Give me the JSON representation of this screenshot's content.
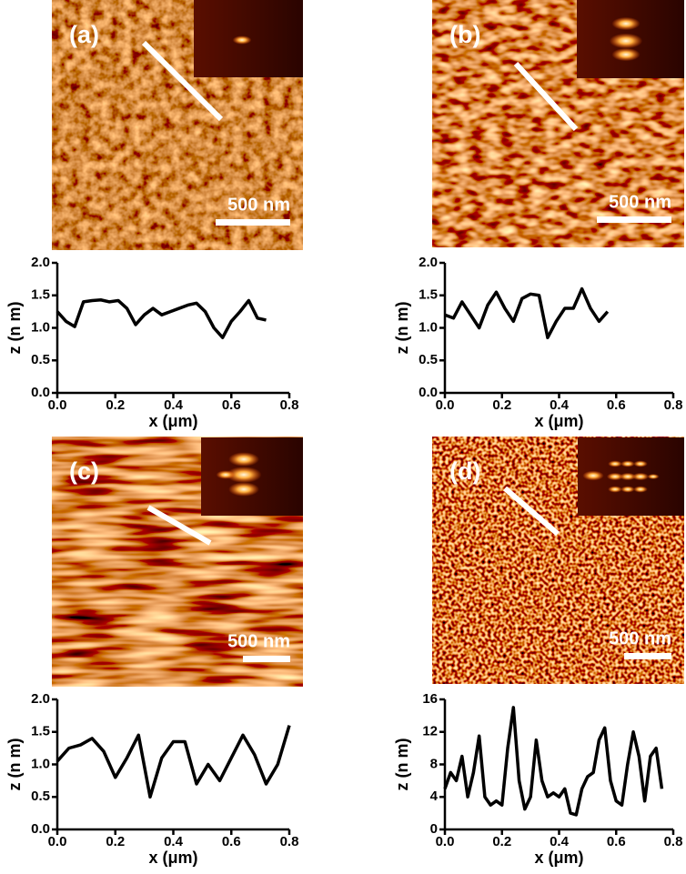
{
  "images": [
    {
      "label": "(a)",
      "scale_bar": "500 nm"
    },
    {
      "label": "(b)",
      "scale_bar": "500 nm"
    },
    {
      "label": "(c)",
      "scale_bar": "500 nm"
    },
    {
      "label": "(d)",
      "scale_bar": "500 nm"
    }
  ],
  "chart_data": [
    {
      "type": "line",
      "xlabel": "x (μm)",
      "ylabel": "z (n m)",
      "x": [
        0,
        0.03,
        0.06,
        0.09,
        0.12,
        0.15,
        0.18,
        0.21,
        0.24,
        0.27,
        0.3,
        0.33,
        0.36,
        0.39,
        0.42,
        0.45,
        0.48,
        0.51,
        0.54,
        0.57,
        0.6,
        0.63,
        0.66,
        0.69,
        0.72
      ],
      "series": [
        {
          "color": "#000000",
          "values": [
            1.25,
            1.1,
            1.02,
            1.4,
            1.42,
            1.43,
            1.4,
            1.42,
            1.3,
            1.05,
            1.2,
            1.3,
            1.2,
            1.25,
            1.3,
            1.35,
            1.38,
            1.25,
            1.0,
            0.85,
            1.1,
            1.25,
            1.42,
            1.15,
            1.12
          ]
        }
      ],
      "xlim": [
        0,
        0.8
      ],
      "xticks": [
        {
          "value": 0,
          "label": "0.0"
        },
        {
          "value": 0.2,
          "label": "0.2"
        },
        {
          "value": 0.4,
          "label": "0.4"
        },
        {
          "value": 0.6,
          "label": "0.6"
        },
        {
          "value": 0.8,
          "label": "0.8"
        }
      ],
      "ylim": [
        0,
        2
      ],
      "yticks": [
        {
          "value": 0,
          "label": "0.0"
        },
        {
          "value": 0.5,
          "label": "0.5"
        },
        {
          "value": 1,
          "label": "1.0"
        },
        {
          "value": 1.5,
          "label": "1.5"
        },
        {
          "value": 2,
          "label": "2.0"
        }
      ]
    },
    {
      "type": "line",
      "xlabel": "x (μm)",
      "ylabel": "z (n m)",
      "x": [
        0,
        0.03,
        0.06,
        0.09,
        0.12,
        0.15,
        0.18,
        0.21,
        0.24,
        0.27,
        0.3,
        0.33,
        0.36,
        0.39,
        0.42,
        0.45,
        0.48,
        0.51,
        0.54,
        0.57
      ],
      "series": [
        {
          "color": "#000000",
          "values": [
            1.2,
            1.15,
            1.4,
            1.2,
            1.0,
            1.35,
            1.55,
            1.3,
            1.1,
            1.45,
            1.52,
            1.5,
            0.85,
            1.1,
            1.3,
            1.3,
            1.6,
            1.3,
            1.1,
            1.25
          ]
        }
      ],
      "xlim": [
        0,
        0.8
      ],
      "xticks": [
        {
          "value": 0,
          "label": "0.0"
        },
        {
          "value": 0.2,
          "label": "0.2"
        },
        {
          "value": 0.4,
          "label": "0.4"
        },
        {
          "value": 0.6,
          "label": "0.6"
        },
        {
          "value": 0.8,
          "label": "0.8"
        }
      ],
      "ylim": [
        0,
        2
      ],
      "yticks": [
        {
          "value": 0,
          "label": "0.0"
        },
        {
          "value": 0.5,
          "label": "0.5"
        },
        {
          "value": 1,
          "label": "1.0"
        },
        {
          "value": 1.5,
          "label": "1.5"
        },
        {
          "value": 2,
          "label": "2.0"
        }
      ]
    },
    {
      "type": "line",
      "xlabel": "x (μm)",
      "ylabel": "z (n m)",
      "x": [
        0,
        0.04,
        0.08,
        0.12,
        0.16,
        0.2,
        0.24,
        0.28,
        0.32,
        0.36,
        0.4,
        0.44,
        0.48,
        0.52,
        0.56,
        0.6,
        0.64,
        0.68,
        0.72,
        0.76,
        0.8
      ],
      "series": [
        {
          "color": "#000000",
          "values": [
            1.05,
            1.25,
            1.3,
            1.4,
            1.2,
            0.8,
            1.1,
            1.45,
            0.5,
            1.1,
            1.35,
            1.35,
            0.7,
            1.0,
            0.75,
            1.1,
            1.45,
            1.15,
            0.7,
            1.0,
            1.6
          ]
        }
      ],
      "xlim": [
        0,
        0.8
      ],
      "xticks": [
        {
          "value": 0,
          "label": "0.0"
        },
        {
          "value": 0.2,
          "label": "0.2"
        },
        {
          "value": 0.4,
          "label": "0.4"
        },
        {
          "value": 0.6,
          "label": "0.6"
        },
        {
          "value": 0.8,
          "label": "0.8"
        }
      ],
      "ylim": [
        0,
        2
      ],
      "yticks": [
        {
          "value": 0,
          "label": "0.0"
        },
        {
          "value": 0.5,
          "label": "0.5"
        },
        {
          "value": 1,
          "label": "1.0"
        },
        {
          "value": 1.5,
          "label": "1.5"
        },
        {
          "value": 2,
          "label": "2.0"
        }
      ]
    },
    {
      "type": "line",
      "xlabel": "x (μm)",
      "ylabel": "z (n m)",
      "x": [
        0,
        0.02,
        0.04,
        0.06,
        0.08,
        0.1,
        0.12,
        0.14,
        0.16,
        0.18,
        0.2,
        0.22,
        0.24,
        0.26,
        0.28,
        0.3,
        0.32,
        0.34,
        0.36,
        0.38,
        0.4,
        0.42,
        0.44,
        0.46,
        0.48,
        0.5,
        0.52,
        0.54,
        0.56,
        0.58,
        0.6,
        0.62,
        0.64,
        0.66,
        0.68,
        0.7,
        0.72,
        0.74,
        0.76
      ],
      "series": [
        {
          "color": "#000000",
          "values": [
            5,
            7,
            6,
            9,
            4,
            7,
            11.5,
            4,
            3,
            3.5,
            3,
            10,
            15,
            6,
            2.5,
            4,
            11,
            6,
            4,
            4.5,
            4,
            5,
            2,
            1.8,
            5,
            6.5,
            7,
            11,
            12.5,
            6,
            3.5,
            3,
            8,
            12,
            9,
            3.5,
            9,
            10,
            5
          ]
        }
      ],
      "xlim": [
        0,
        0.8
      ],
      "xticks": [
        {
          "value": 0,
          "label": "0.0"
        },
        {
          "value": 0.2,
          "label": "0.2"
        },
        {
          "value": 0.4,
          "label": "0.4"
        },
        {
          "value": 0.6,
          "label": "0.6"
        },
        {
          "value": 0.8,
          "label": "0.8"
        }
      ],
      "ylim": [
        0,
        16
      ],
      "yticks": [
        0,
        4,
        8,
        12,
        16
      ]
    }
  ]
}
